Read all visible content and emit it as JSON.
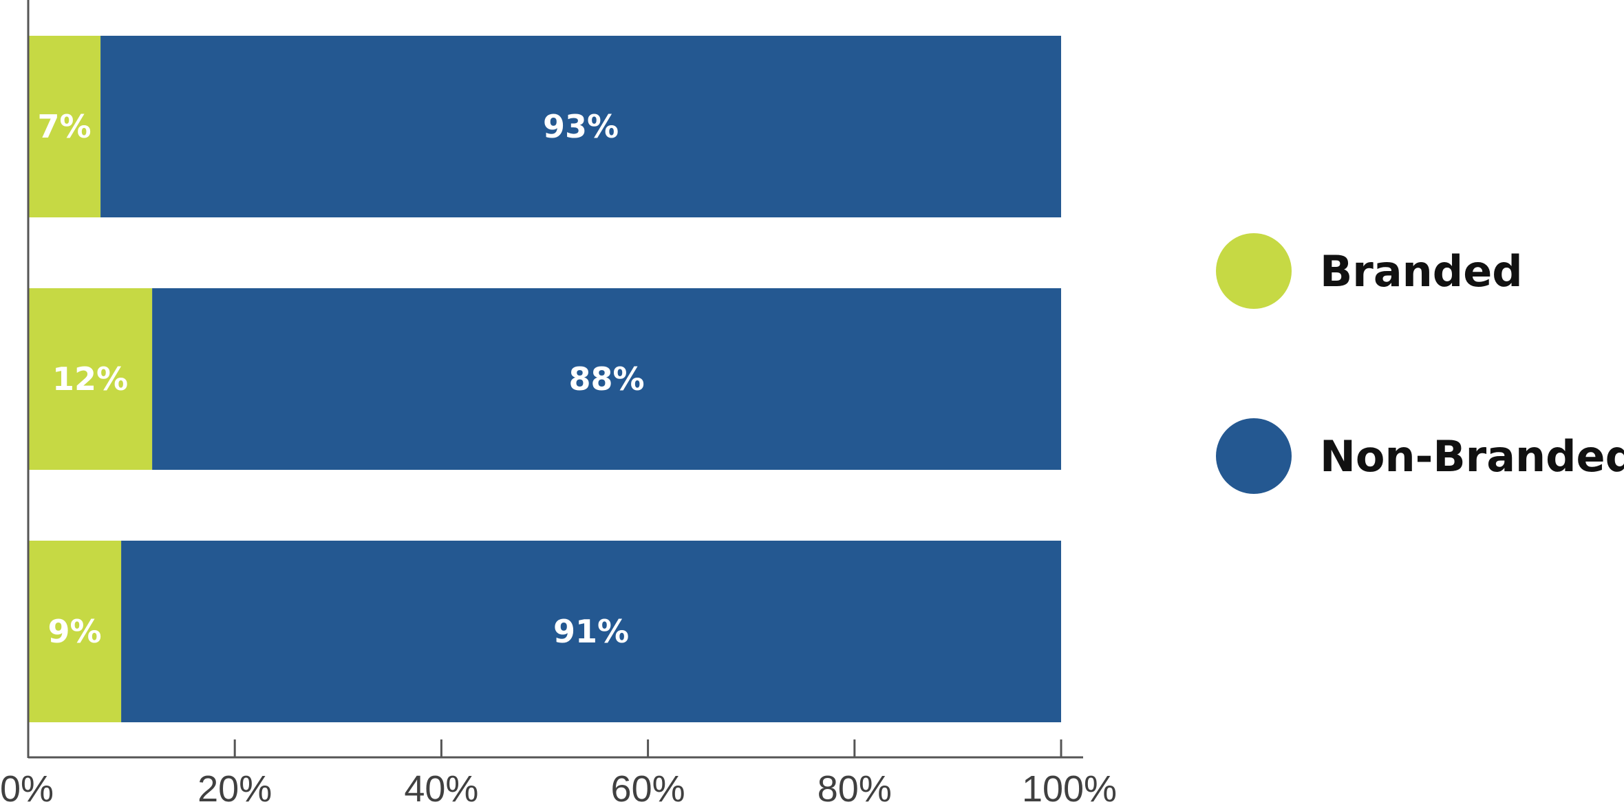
{
  "chart_data": {
    "type": "bar",
    "orientation": "horizontal",
    "stacked": true,
    "categories": [
      "",
      "",
      ""
    ],
    "series": [
      {
        "name": "Branded",
        "values": [
          7,
          12,
          9
        ],
        "labels": [
          "7%",
          "12%",
          "9%"
        ],
        "color": "#c6d944"
      },
      {
        "name": "Non-Branded",
        "values": [
          93,
          88,
          91
        ],
        "labels": [
          "93%",
          "88%",
          "91%"
        ],
        "color": "#245891"
      }
    ],
    "xaxis": {
      "range": [
        0,
        100
      ],
      "ticks": [
        0,
        20,
        40,
        60,
        80,
        100
      ],
      "tick_labels": [
        "0%",
        "20%",
        "40%",
        "60%",
        "80%",
        "100%"
      ]
    },
    "title": "",
    "xlabel": "",
    "ylabel": "",
    "grid": false,
    "legend": {
      "placement": "right",
      "items": [
        "Branded",
        "Non-Branded"
      ]
    },
    "axis_color": "#555555"
  }
}
